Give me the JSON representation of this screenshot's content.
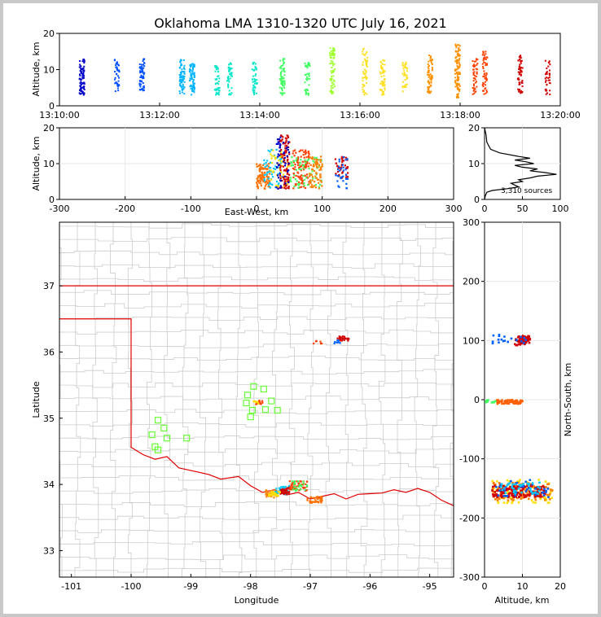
{
  "figure": {
    "title": "Oklahoma LMA 1310-1320 UTC July 16, 2021"
  },
  "chart_data": [
    {
      "id": "time-height",
      "type": "scatter",
      "ylabel": "Altitude, km",
      "xlabel": "",
      "ylim": [
        0,
        20
      ],
      "yticks": [
        "0",
        "10",
        "20"
      ],
      "xticks": [
        "13:10:00",
        "13:12:00",
        "13:14:00",
        "13:16:00",
        "13:18:00",
        "13:20:00"
      ],
      "xlim_minutes": [
        0,
        10
      ],
      "color_by": "time",
      "colors": [
        "#0000c8",
        "#0050ff",
        "#00b4ff",
        "#00e6c8",
        "#40ff60",
        "#a0ff30",
        "#ffe020",
        "#ff9000",
        "#ff4000",
        "#d00000"
      ],
      "bursts": [
        {
          "t": 0.45,
          "ymin": 3,
          "ymax": 13,
          "n": 90
        },
        {
          "t": 1.15,
          "ymin": 4,
          "ymax": 13,
          "n": 40
        },
        {
          "t": 1.65,
          "ymin": 4,
          "ymax": 13,
          "n": 60
        },
        {
          "t": 2.45,
          "ymin": 3,
          "ymax": 13,
          "n": 70
        },
        {
          "t": 2.65,
          "ymin": 3,
          "ymax": 12,
          "n": 70
        },
        {
          "t": 3.15,
          "ymin": 3,
          "ymax": 12,
          "n": 40
        },
        {
          "t": 3.4,
          "ymin": 3,
          "ymax": 12,
          "n": 40
        },
        {
          "t": 3.9,
          "ymin": 3,
          "ymax": 12,
          "n": 45
        },
        {
          "t": 4.45,
          "ymin": 3,
          "ymax": 13,
          "n": 60
        },
        {
          "t": 4.95,
          "ymin": 3,
          "ymax": 12,
          "n": 40
        },
        {
          "t": 5.45,
          "ymin": 3,
          "ymax": 16,
          "n": 70
        },
        {
          "t": 6.1,
          "ymin": 3,
          "ymax": 16,
          "n": 55
        },
        {
          "t": 6.45,
          "ymin": 3,
          "ymax": 13,
          "n": 55
        },
        {
          "t": 6.9,
          "ymin": 4,
          "ymax": 12,
          "n": 40
        },
        {
          "t": 7.4,
          "ymin": 3,
          "ymax": 14,
          "n": 60
        },
        {
          "t": 7.95,
          "ymin": 2,
          "ymax": 17,
          "n": 110
        },
        {
          "t": 8.3,
          "ymin": 3,
          "ymax": 13,
          "n": 45
        },
        {
          "t": 8.5,
          "ymin": 3,
          "ymax": 15,
          "n": 55
        },
        {
          "t": 9.2,
          "ymin": 3,
          "ymax": 14,
          "n": 60
        },
        {
          "t": 9.75,
          "ymin": 3,
          "ymax": 13,
          "n": 35
        }
      ]
    },
    {
      "id": "ew-altitude",
      "type": "scatter",
      "xlabel": "East-West, km",
      "ylabel": "Altitude, km",
      "xlim": [
        -300,
        300
      ],
      "ylim": [
        0,
        20
      ],
      "xticks": [
        "-300",
        "-200",
        "-100",
        "0",
        "100",
        "200",
        "300"
      ],
      "yticks": [
        "0",
        "10",
        "20"
      ],
      "clusters": [
        {
          "xmin": 0,
          "xmax": 20,
          "ymin": 3,
          "ymax": 10,
          "color": "#ff7000",
          "n": 90
        },
        {
          "xmin": 10,
          "xmax": 40,
          "ymin": 3,
          "ymax": 14,
          "color": "#00c8ff",
          "n": 50
        },
        {
          "xmin": 20,
          "xmax": 50,
          "ymin": 3,
          "ymax": 14,
          "color": "#ffe000",
          "n": 50
        },
        {
          "xmin": 35,
          "xmax": 50,
          "ymin": 3,
          "ymax": 18,
          "color": "#d00000",
          "n": 90
        },
        {
          "xmin": 30,
          "xmax": 50,
          "ymin": 3,
          "ymax": 18,
          "color": "#0000c8",
          "n": 50
        },
        {
          "xmin": 55,
          "xmax": 80,
          "ymin": 3,
          "ymax": 14,
          "color": "#ff4000",
          "n": 90
        },
        {
          "xmin": 50,
          "xmax": 100,
          "ymin": 3,
          "ymax": 12,
          "color": "#40ff60",
          "n": 60
        },
        {
          "xmin": 80,
          "xmax": 100,
          "ymin": 3,
          "ymax": 12,
          "color": "#ff8000",
          "n": 70
        },
        {
          "xmin": 120,
          "xmax": 140,
          "ymin": 6,
          "ymax": 12,
          "color": "#d00000",
          "n": 40
        },
        {
          "xmin": 120,
          "xmax": 140,
          "ymin": 3,
          "ymax": 12,
          "color": "#0060ff",
          "n": 30
        }
      ]
    },
    {
      "id": "altitude-histogram",
      "type": "line",
      "xlim": [
        0,
        100
      ],
      "ylim": [
        0,
        20
      ],
      "xticks": [
        "0",
        "50",
        "100"
      ],
      "yticks": [
        "0",
        "10",
        "20"
      ],
      "annotation": "3,310 sources",
      "profile": [
        [
          0,
          20
        ],
        [
          1,
          19
        ],
        [
          2,
          18
        ],
        [
          3,
          16
        ],
        [
          8,
          14
        ],
        [
          20,
          13
        ],
        [
          45,
          12
        ],
        [
          60,
          11.5
        ],
        [
          40,
          11
        ],
        [
          55,
          10.5
        ],
        [
          65,
          10
        ],
        [
          40,
          9.5
        ],
        [
          50,
          9
        ],
        [
          70,
          8.5
        ],
        [
          60,
          8
        ],
        [
          80,
          7.5
        ],
        [
          95,
          7
        ],
        [
          70,
          6.5
        ],
        [
          60,
          6
        ],
        [
          45,
          5.5
        ],
        [
          50,
          5
        ],
        [
          35,
          4.5
        ],
        [
          40,
          4
        ],
        [
          45,
          3.5
        ],
        [
          30,
          3
        ],
        [
          10,
          2.5
        ],
        [
          3,
          2
        ],
        [
          1,
          1
        ],
        [
          0,
          0
        ]
      ]
    },
    {
      "id": "plan-view",
      "type": "scatter",
      "xlabel": "Longitude",
      "ylabel": "Latitude",
      "xlim": [
        -101.2,
        -94.6
      ],
      "ylim": [
        32.6,
        37.96
      ],
      "xticks": [
        "-101",
        "-100",
        "-99",
        "-98",
        "-97",
        "-96",
        "-95"
      ],
      "yticks": [
        "33",
        "34",
        "35",
        "36",
        "37"
      ],
      "stations": [
        [
          -97.95,
          35.48
        ],
        [
          -97.78,
          35.44
        ],
        [
          -98.05,
          35.35
        ],
        [
          -98.07,
          35.23
        ],
        [
          -97.75,
          35.13
        ],
        [
          -97.97,
          35.12
        ],
        [
          -98.0,
          35.02
        ],
        [
          -97.55,
          35.12
        ],
        [
          -97.65,
          35.26
        ],
        [
          -99.55,
          34.97
        ],
        [
          -99.45,
          34.85
        ],
        [
          -99.4,
          34.7
        ],
        [
          -99.65,
          34.75
        ],
        [
          -99.6,
          34.57
        ],
        [
          -99.55,
          34.52
        ],
        [
          -99.07,
          34.7
        ]
      ],
      "clusters": [
        {
          "lonmin": -97.92,
          "lonmax": -97.8,
          "latmin": 35.21,
          "latmax": 35.27,
          "color": "#ff4000",
          "n": 20
        },
        {
          "lonmin": -97.95,
          "lonmax": -97.85,
          "latmin": 35.22,
          "latmax": 35.26,
          "color": "#ffe000",
          "n": 8
        },
        {
          "lonmin": -96.55,
          "lonmax": -96.35,
          "latmin": 36.17,
          "latmax": 36.24,
          "color": "#d00000",
          "n": 25
        },
        {
          "lonmin": -96.6,
          "lonmax": -96.5,
          "latmin": 36.13,
          "latmax": 36.18,
          "color": "#0060ff",
          "n": 8
        },
        {
          "lonmin": -96.95,
          "lonmax": -96.8,
          "latmin": 36.12,
          "latmax": 36.17,
          "color": "#ff4000",
          "n": 6
        },
        {
          "lonmin": -97.75,
          "lonmax": -97.55,
          "latmin": 33.8,
          "latmax": 33.92,
          "color": "#ff8000",
          "n": 40
        },
        {
          "lonmin": -97.6,
          "lonmax": -97.35,
          "latmin": 33.85,
          "latmax": 33.98,
          "color": "#00c8ff",
          "n": 35
        },
        {
          "lonmin": -97.5,
          "lonmax": -97.35,
          "latmin": 33.85,
          "latmax": 33.95,
          "color": "#d00000",
          "n": 40
        },
        {
          "lonmin": -97.35,
          "lonmax": -97.05,
          "latmin": 33.9,
          "latmax": 34.05,
          "color": "#ff4000",
          "n": 50
        },
        {
          "lonmin": -97.3,
          "lonmax": -97.05,
          "latmin": 33.9,
          "latmax": 34.05,
          "color": "#40ff60",
          "n": 25
        },
        {
          "lonmin": -97.05,
          "lonmax": -96.8,
          "latmin": 33.72,
          "latmax": 33.82,
          "color": "#ff7000",
          "n": 40
        },
        {
          "lonmin": -97.7,
          "lonmax": -97.5,
          "latmin": 33.82,
          "latmax": 33.9,
          "color": "#ffe000",
          "n": 25
        }
      ]
    },
    {
      "id": "altitude-ns",
      "type": "scatter",
      "xlabel": "Altitude, km",
      "ylabel": "North-South, km",
      "xlim": [
        0,
        20
      ],
      "ylim": [
        -300,
        300
      ],
      "xticks": [
        "0",
        "10",
        "20"
      ],
      "yticks": [
        "-300",
        "-200",
        "-100",
        "0",
        "100",
        "200",
        "300"
      ],
      "clusters": [
        {
          "xmin": 2,
          "xmax": 18,
          "ymin": -175,
          "ymax": -135,
          "color": "#ffe000",
          "n": 80
        },
        {
          "xmin": 2,
          "xmax": 18,
          "ymin": -170,
          "ymax": -140,
          "color": "#ff8000",
          "n": 120
        },
        {
          "xmin": 2,
          "xmax": 16,
          "ymin": -165,
          "ymax": -145,
          "color": "#d00000",
          "n": 150
        },
        {
          "xmin": 3,
          "xmax": 17,
          "ymin": -165,
          "ymax": -135,
          "color": "#0060ff",
          "n": 40
        },
        {
          "xmin": 4,
          "xmax": 15,
          "ymin": -160,
          "ymax": -140,
          "color": "#00c8ff",
          "n": 40
        },
        {
          "xmin": 3,
          "xmax": 10,
          "ymin": -7,
          "ymax": 0,
          "color": "#ff6000",
          "n": 60
        },
        {
          "xmin": 0,
          "xmax": 3,
          "ymin": -5,
          "ymax": 0,
          "color": "#40ff60",
          "n": 10
        },
        {
          "xmin": 8,
          "xmax": 12,
          "ymin": 92,
          "ymax": 108,
          "color": "#d00000",
          "n": 60
        },
        {
          "xmin": 2,
          "xmax": 12,
          "ymin": 95,
          "ymax": 110,
          "color": "#0060ff",
          "n": 20
        }
      ]
    }
  ]
}
